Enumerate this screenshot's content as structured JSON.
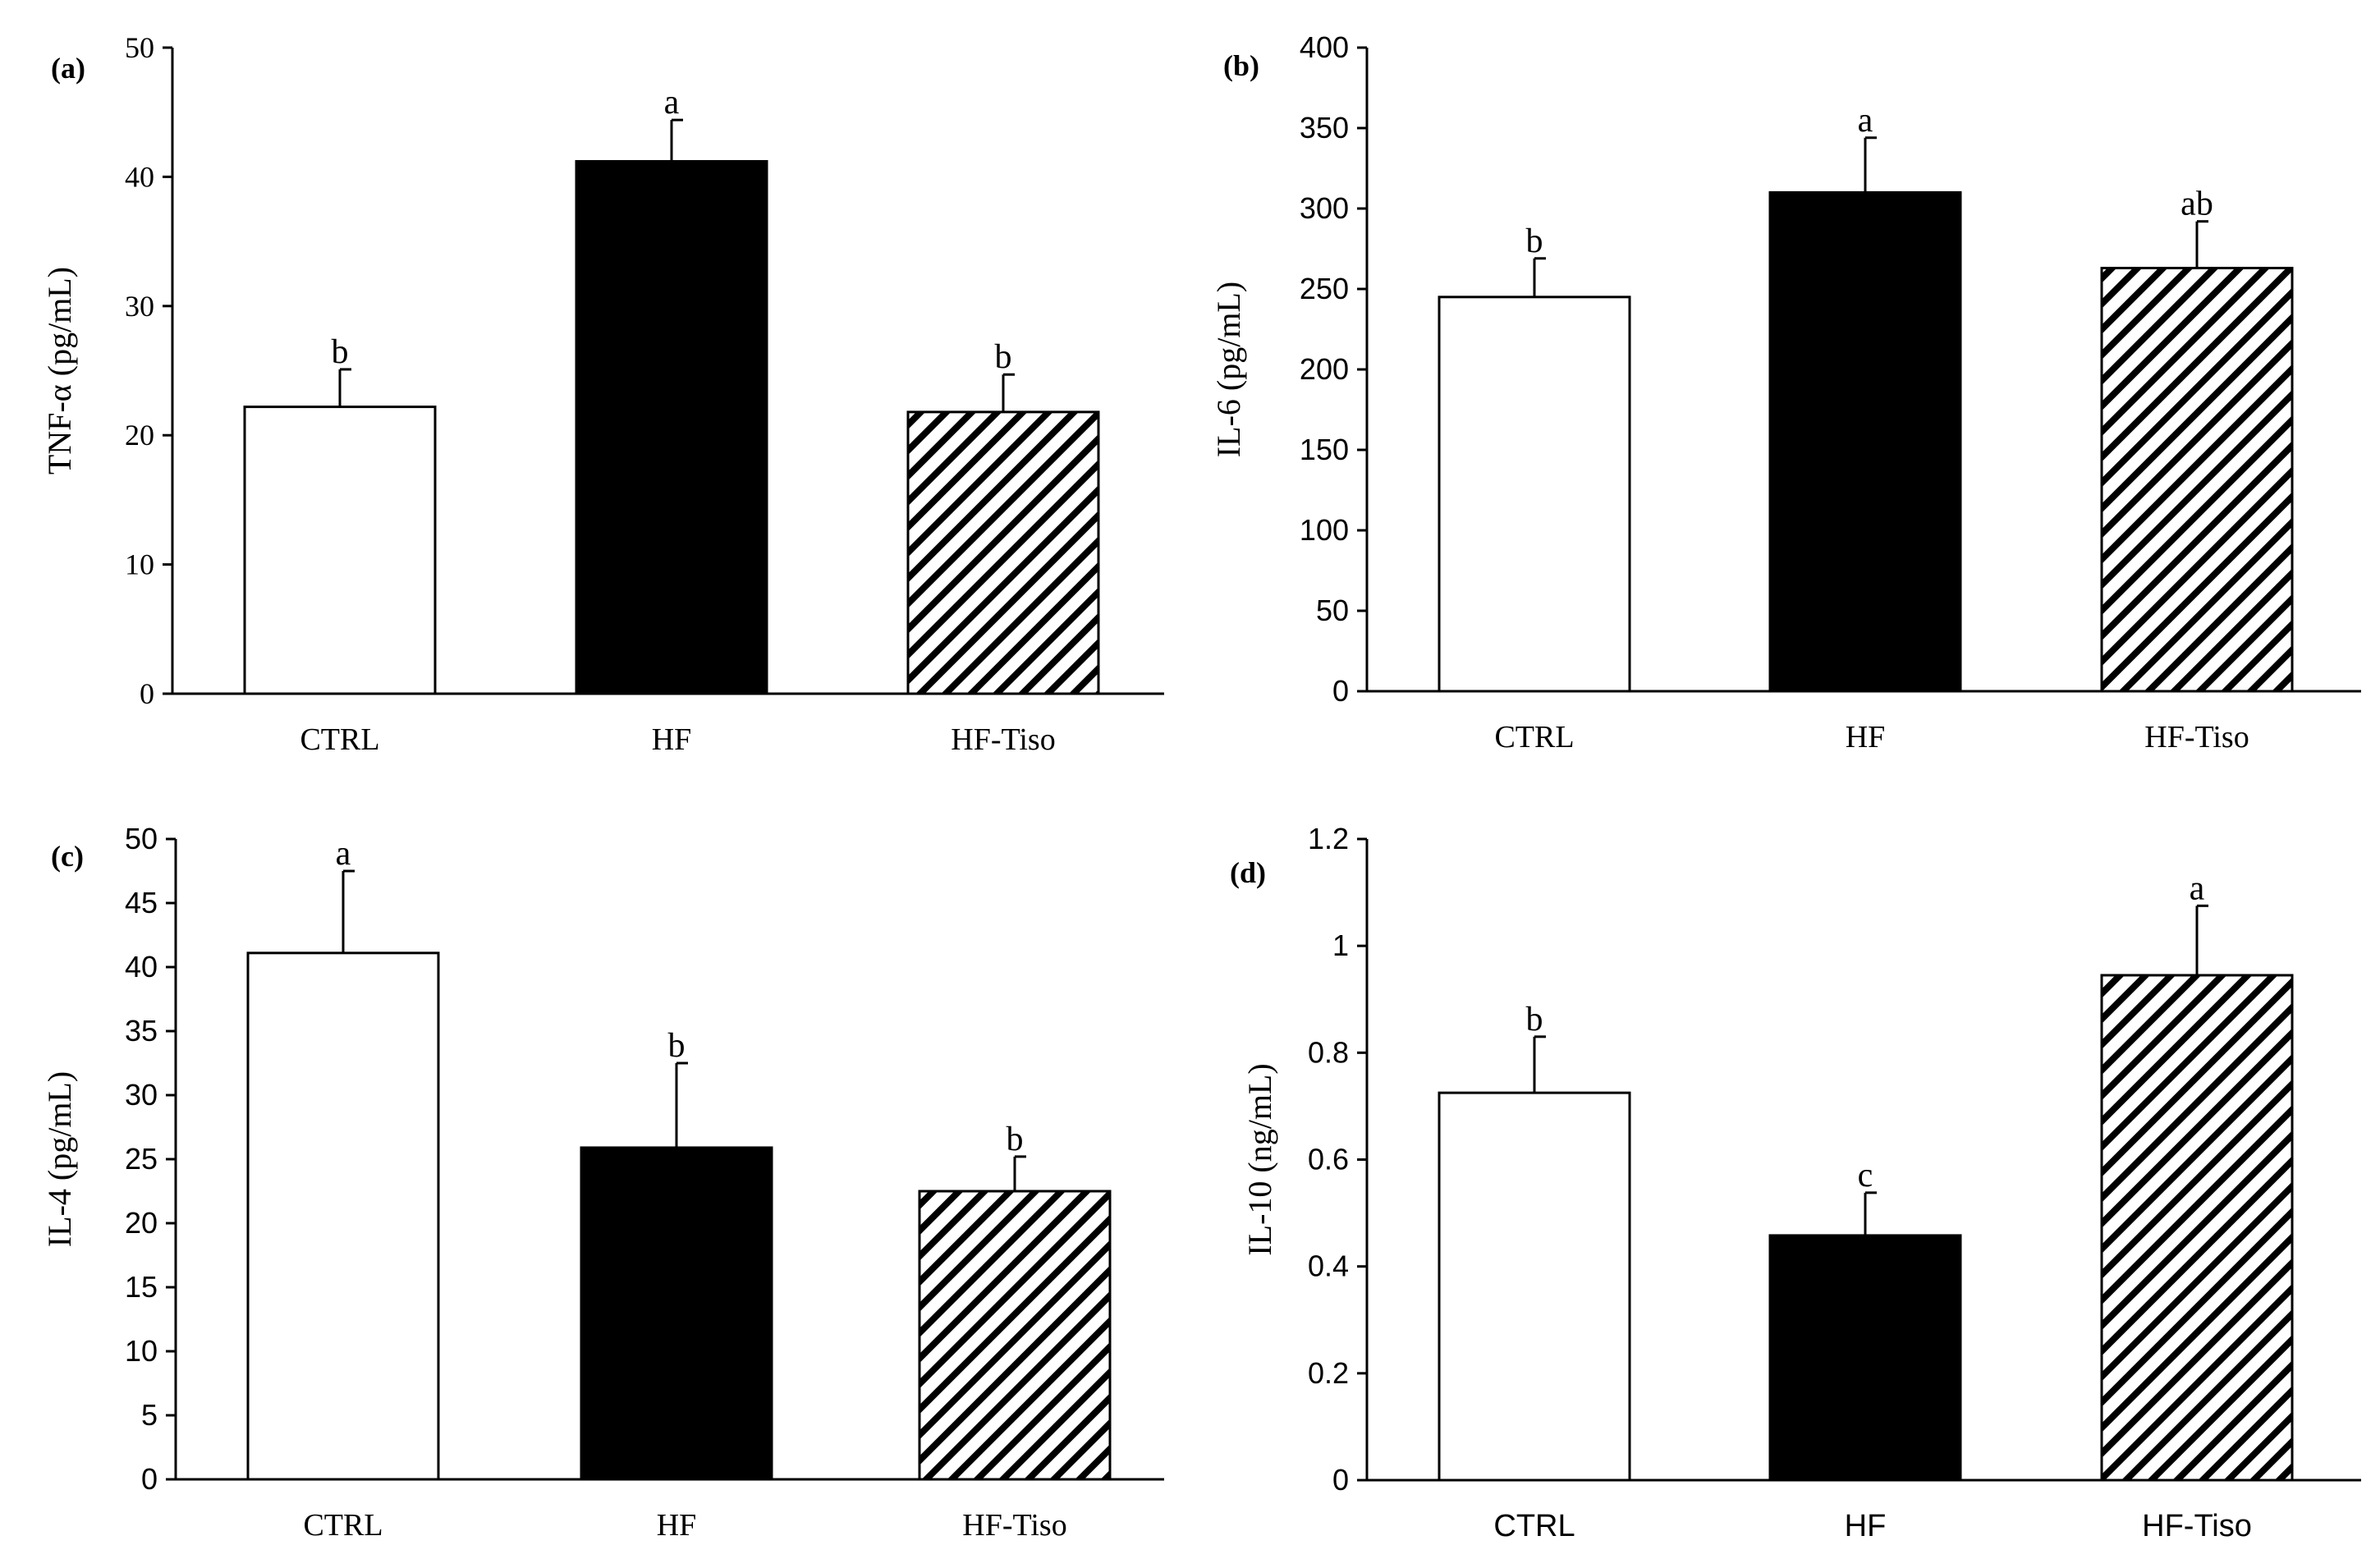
{
  "chart_data": [
    {
      "type": "bar",
      "panel_label": "(a)",
      "title": "",
      "xlabel": "",
      "ylabel": "TNF-α (pg/mL)",
      "ylim": [
        0,
        50
      ],
      "yticks": [
        "0",
        "10",
        "20",
        "30",
        "40",
        "50"
      ],
      "categories": [
        "CTRL",
        "HF",
        "HF-Tiso"
      ],
      "values": [
        22.2,
        41.2,
        21.8
      ],
      "errors": [
        2.9,
        3.2,
        2.9
      ],
      "significance": [
        "b",
        "a",
        "b"
      ],
      "fills": [
        "white",
        "black",
        "hatch"
      ],
      "grid": false
    },
    {
      "type": "bar",
      "panel_label": "(b)",
      "title": "",
      "xlabel": "",
      "ylabel": "IL-6 (pg/mL)",
      "ylim": [
        0,
        400
      ],
      "yticks": [
        "0",
        "50",
        "100",
        "150",
        "200",
        "250",
        "300",
        "350",
        "400"
      ],
      "categories": [
        "CTRL",
        "HF",
        "HF-Tiso"
      ],
      "values": [
        245,
        310,
        263
      ],
      "errors": [
        24,
        34,
        29
      ],
      "significance": [
        "b",
        "a",
        "ab"
      ],
      "fills": [
        "white",
        "black",
        "hatch"
      ],
      "grid": false
    },
    {
      "type": "bar",
      "panel_label": "(c)",
      "title": "",
      "xlabel": "",
      "ylabel": "IL-4 (pg/mL)",
      "ylim": [
        0,
        50
      ],
      "yticks": [
        "0",
        "5",
        "10",
        "15",
        "20",
        "25",
        "30",
        "35",
        "40",
        "45",
        "50"
      ],
      "categories": [
        "CTRL",
        "HF",
        "HF-Tiso"
      ],
      "values": [
        41.1,
        25.9,
        22.5
      ],
      "errors": [
        6.4,
        6.6,
        2.7
      ],
      "significance": [
        "a",
        "b",
        "b"
      ],
      "fills": [
        "white",
        "black",
        "hatch"
      ],
      "grid": false
    },
    {
      "type": "bar",
      "panel_label": "(d)",
      "title": "",
      "xlabel": "",
      "ylabel": "IL-10 (ng/mL)",
      "ylim": [
        0,
        1.2
      ],
      "yticks": [
        "0",
        "0.2",
        "0.4",
        "0.6",
        "0.8",
        "1",
        "1.2"
      ],
      "categories": [
        "CTRL",
        "HF",
        "HF-Tiso"
      ],
      "values": [
        0.725,
        0.458,
        0.945
      ],
      "errors": [
        0.105,
        0.08,
        0.13
      ],
      "significance": [
        "b",
        "c",
        "a"
      ],
      "fills": [
        "white",
        "black",
        "hatch"
      ],
      "grid": false
    }
  ]
}
